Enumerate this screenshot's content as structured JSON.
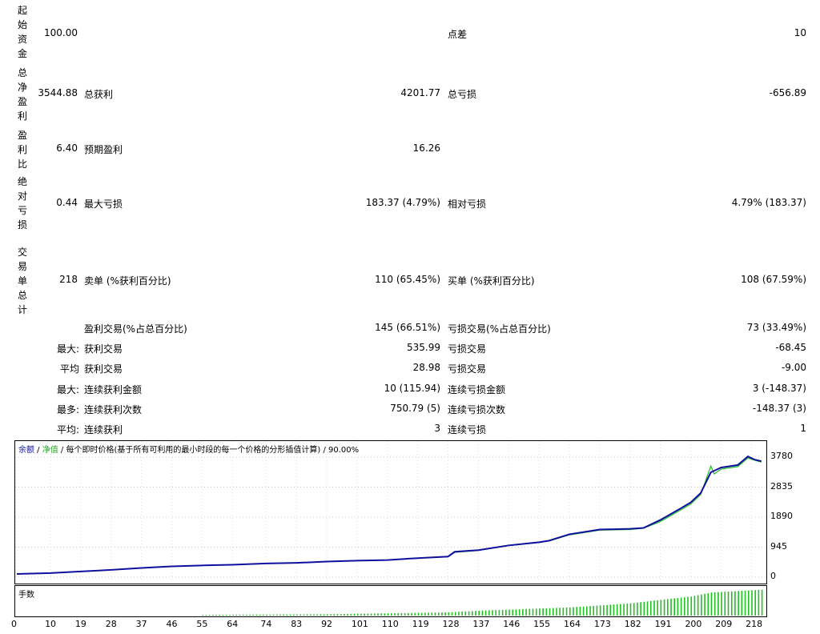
{
  "report": {
    "rows": [
      {
        "vlabel": "起始资金",
        "c1": "100.00",
        "c2_label": "",
        "c2_val": "",
        "c3_label": "点差",
        "c3_val": "10"
      },
      {
        "vlabel": "总净盈利",
        "c1": "3544.88",
        "c2_label": "总获利",
        "c2_val": "4201.77",
        "c3_label": "总亏损",
        "c3_val": "-656.89"
      },
      {
        "vlabel": "盈利比",
        "c1": "6.40",
        "c2_label": "预期盈利",
        "c2_val": "16.26",
        "c3_label": "",
        "c3_val": ""
      },
      {
        "vlabel": "绝对亏损",
        "c1": "0.44",
        "c2_label": "最大亏损",
        "c2_val": "183.37 (4.79%)",
        "c3_label": "相对亏损",
        "c3_val": "4.79% (183.37)"
      },
      {
        "vlabel": "交易单总计",
        "c1": "218",
        "c2_label": "卖单 (%获利百分比)",
        "c2_val": "110 (65.45%)",
        "c3_label": "买单 (%获利百分比)",
        "c3_val": "108 (67.59%)"
      },
      {
        "vlabel": "",
        "c1": "",
        "c2_label": "盈利交易(%占总百分比)",
        "c2_val": "145 (66.51%)",
        "c3_label": "亏损交易(%占总百分比)",
        "c3_val": "73 (33.49%)"
      },
      {
        "vlabel": "最大:",
        "c1": "",
        "c2_label": "获利交易",
        "c2_val": "535.99",
        "c3_label": "亏损交易",
        "c3_val": "-68.45"
      },
      {
        "vlabel": "平均",
        "c1": "",
        "c2_label": "获利交易",
        "c2_val": "28.98",
        "c3_label": "亏损交易",
        "c3_val": "-9.00"
      },
      {
        "vlabel": "最大:",
        "c1": "",
        "c2_label": "连续获利金额",
        "c2_val": "10 (115.94)",
        "c3_label": "连续亏损金额",
        "c3_val": "3 (-148.37)"
      },
      {
        "vlabel": "最多:",
        "c1": "",
        "c2_label": "连续获利次数",
        "c2_val": "750.79 (5)",
        "c3_label": "连续亏损次数",
        "c3_val": "-148.37 (3)"
      },
      {
        "vlabel": "平均:",
        "c1": "",
        "c2_label": "连续获利",
        "c2_val": "3",
        "c3_label": "连续亏损",
        "c3_val": "1"
      }
    ]
  },
  "chart_data": {
    "type": "line",
    "legend": {
      "balance": "余额",
      "sep1": " / ",
      "equity": "净值",
      "sep2": " / ",
      "description": "每个即时价格(基于所有可利用的最小时段的每一个价格的分形插值计算) / 90.00%"
    },
    "volume_label": "手数",
    "yticks": [
      "3780",
      "2835",
      "1890",
      "945",
      "0"
    ],
    "ytick_values": [
      3780,
      2835,
      1890,
      945,
      0
    ],
    "xticks": [
      "0",
      "10",
      "19",
      "28",
      "37",
      "46",
      "55",
      "64",
      "74",
      "83",
      "92",
      "101",
      "110",
      "119",
      "128",
      "137",
      "146",
      "155",
      "164",
      "173",
      "182",
      "191",
      "200",
      "209",
      "218"
    ],
    "xlim": [
      0,
      222
    ],
    "ylim": [
      0,
      3780
    ],
    "colors": {
      "balance": "#1010a0",
      "equity": "#20c020",
      "volume": "#20c020"
    },
    "balance": [
      [
        0,
        100
      ],
      [
        10,
        130
      ],
      [
        19,
        180
      ],
      [
        28,
        230
      ],
      [
        37,
        290
      ],
      [
        46,
        340
      ],
      [
        55,
        370
      ],
      [
        64,
        390
      ],
      [
        74,
        430
      ],
      [
        83,
        450
      ],
      [
        92,
        490
      ],
      [
        101,
        520
      ],
      [
        110,
        540
      ],
      [
        119,
        600
      ],
      [
        128,
        650
      ],
      [
        130,
        800
      ],
      [
        137,
        850
      ],
      [
        146,
        1000
      ],
      [
        155,
        1100
      ],
      [
        158,
        1150
      ],
      [
        164,
        1350
      ],
      [
        173,
        1500
      ],
      [
        182,
        1520
      ],
      [
        186,
        1550
      ],
      [
        191,
        1800
      ],
      [
        196,
        2100
      ],
      [
        200,
        2350
      ],
      [
        203,
        2650
      ],
      [
        206,
        3300
      ],
      [
        209,
        3450
      ],
      [
        214,
        3530
      ],
      [
        217,
        3800
      ],
      [
        219,
        3700
      ],
      [
        221,
        3650
      ]
    ],
    "equity": [
      [
        0,
        100
      ],
      [
        10,
        130
      ],
      [
        19,
        180
      ],
      [
        28,
        230
      ],
      [
        37,
        290
      ],
      [
        46,
        340
      ],
      [
        55,
        370
      ],
      [
        64,
        390
      ],
      [
        74,
        430
      ],
      [
        83,
        450
      ],
      [
        92,
        490
      ],
      [
        101,
        520
      ],
      [
        110,
        540
      ],
      [
        119,
        600
      ],
      [
        128,
        640
      ],
      [
        130,
        780
      ],
      [
        137,
        840
      ],
      [
        146,
        990
      ],
      [
        155,
        1090
      ],
      [
        158,
        1140
      ],
      [
        164,
        1330
      ],
      [
        173,
        1480
      ],
      [
        182,
        1500
      ],
      [
        186,
        1540
      ],
      [
        191,
        1750
      ],
      [
        196,
        2050
      ],
      [
        200,
        2300
      ],
      [
        203,
        2600
      ],
      [
        206,
        3500
      ],
      [
        207,
        3250
      ],
      [
        209,
        3400
      ],
      [
        214,
        3480
      ],
      [
        217,
        3750
      ],
      [
        219,
        3680
      ],
      [
        221,
        3620
      ]
    ],
    "volume": [
      [
        55,
        0.03
      ],
      [
        92,
        0.05
      ],
      [
        128,
        0.12
      ],
      [
        137,
        0.18
      ],
      [
        164,
        0.3
      ],
      [
        182,
        0.45
      ],
      [
        191,
        0.58
      ],
      [
        200,
        0.7
      ],
      [
        206,
        0.85
      ],
      [
        221,
        0.95
      ]
    ]
  }
}
